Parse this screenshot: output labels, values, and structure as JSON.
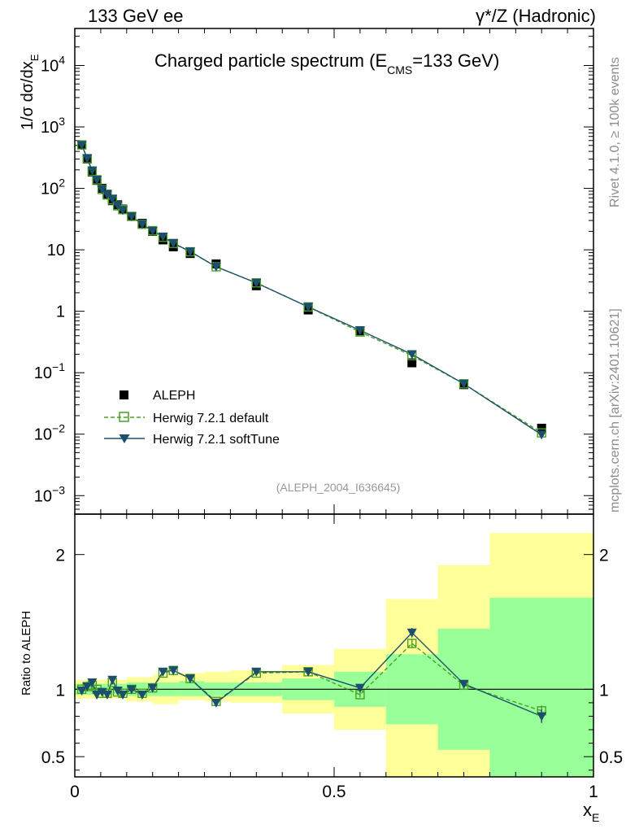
{
  "header": {
    "left": "133 GeV ee",
    "right": "γ*/Z (Hadronic)"
  },
  "side_labels": {
    "rivet": "Rivet 4.1.0, ≥ 100k events",
    "mcplots": "mcplots.cern.ch [arXiv:2401.10621]"
  },
  "colors": {
    "data": "#000000",
    "default": "#4aa023",
    "softtune": "#1b4f6b",
    "band_inner": "#99ff99",
    "band_outer": "#ffff99"
  },
  "chart_data": [
    {
      "id": "main",
      "type": "scatter",
      "yscale": "log",
      "title_main": "Charged particle spectrum (E",
      "title_sub": "CMS",
      "title_rest": "=133 GeV)",
      "ylabel": "1/σ  dσ/dx",
      "ylabel_sub": "E",
      "xlim": [
        0,
        1
      ],
      "ylim": [
        0.0005,
        40000
      ],
      "yticks": [
        {
          "v": 10000,
          "label": "10",
          "exp": "4"
        },
        {
          "v": 1000,
          "label": "10",
          "exp": "3"
        },
        {
          "v": 100,
          "label": "10",
          "exp": "2"
        },
        {
          "v": 10,
          "label": "10",
          "exp": ""
        },
        {
          "v": 1,
          "label": "1",
          "exp": ""
        },
        {
          "v": 0.1,
          "label": "10",
          "exp": "−1"
        },
        {
          "v": 0.01,
          "label": "10",
          "exp": "−2"
        },
        {
          "v": 0.001,
          "label": "10",
          "exp": "−3"
        }
      ],
      "watermark": "(ALEPH_2004_I636645)",
      "legend": [
        {
          "key": "data",
          "label": "ALEPH"
        },
        {
          "key": "default",
          "label": "Herwig 7.2.1 default"
        },
        {
          "key": "softtune",
          "label": "Herwig 7.2.1 softTune"
        }
      ],
      "x": [
        0.0135,
        0.024,
        0.0335,
        0.0425,
        0.0525,
        0.0625,
        0.0725,
        0.0825,
        0.0925,
        0.1095,
        0.13,
        0.15,
        0.17,
        0.19,
        0.2225,
        0.2725,
        0.35,
        0.45,
        0.55,
        0.65,
        0.75,
        0.9
      ],
      "series": [
        {
          "name": "ALEPH",
          "key": "data",
          "values": [
            510,
            300,
            185,
            135,
            100,
            80,
            63,
            54,
            46,
            35,
            27,
            20,
            14.5,
            11.2,
            8.7,
            5.9,
            2.6,
            1.05,
            0.48,
            0.145,
            0.064,
            0.0125
          ]
        },
        {
          "name": "Herwig 7.2.1 default",
          "key": "default",
          "values": [
            510,
            305,
            190,
            138,
            96,
            78,
            65,
            52,
            45,
            35,
            26,
            20.5,
            16,
            12.7,
            9.3,
            5.3,
            2.9,
            1.18,
            0.46,
            0.19,
            0.066,
            0.0105
          ]
        },
        {
          "name": "Herwig 7.2.1 softTune",
          "key": "softtune",
          "values": [
            505,
            308,
            195,
            138,
            96,
            80,
            68,
            53,
            44,
            35,
            26,
            20.3,
            16.4,
            12.8,
            9.4,
            5.3,
            2.9,
            1.18,
            0.49,
            0.2,
            0.066,
            0.0098
          ]
        }
      ]
    },
    {
      "id": "ratio",
      "type": "line",
      "ylabel": "Ratio to ALEPH",
      "xlabel": "x",
      "xlabel_sub": "E",
      "xlim": [
        0,
        1
      ],
      "ylim": [
        0.35,
        2.3
      ],
      "yticks": [
        {
          "v": 2,
          "label": "2"
        },
        {
          "v": 1,
          "label": "1"
        },
        {
          "v": 0.5,
          "label": "0.5"
        }
      ],
      "xticks": [
        {
          "v": 0,
          "label": "0"
        },
        {
          "v": 0.5,
          "label": "0.5"
        },
        {
          "v": 1,
          "label": "1"
        }
      ],
      "bands": [
        {
          "x0": 0.0,
          "x1": 0.1,
          "inner": [
            0.96,
            1.04
          ],
          "outer": [
            0.93,
            1.07
          ]
        },
        {
          "x0": 0.1,
          "x1": 0.15,
          "inner": [
            0.95,
            1.05
          ],
          "outer": [
            0.91,
            1.09
          ]
        },
        {
          "x0": 0.15,
          "x1": 0.2,
          "inner": [
            0.95,
            1.05
          ],
          "outer": [
            0.89,
            1.11
          ]
        },
        {
          "x0": 0.2,
          "x1": 0.25,
          "inner": [
            0.95,
            1.06
          ],
          "outer": [
            0.92,
            1.12
          ]
        },
        {
          "x0": 0.25,
          "x1": 0.3,
          "inner": [
            0.95,
            1.05
          ],
          "outer": [
            0.91,
            1.13
          ]
        },
        {
          "x0": 0.3,
          "x1": 0.4,
          "inner": [
            0.95,
            1.05
          ],
          "outer": [
            0.9,
            1.14
          ]
        },
        {
          "x0": 0.4,
          "x1": 0.5,
          "inner": [
            0.92,
            1.08
          ],
          "outer": [
            0.82,
            1.18
          ]
        },
        {
          "x0": 0.5,
          "x1": 0.6,
          "inner": [
            0.87,
            1.13
          ],
          "outer": [
            0.7,
            1.3
          ]
        },
        {
          "x0": 0.6,
          "x1": 0.7,
          "inner": [
            0.74,
            1.26
          ],
          "outer": [
            0.35,
            1.67
          ]
        },
        {
          "x0": 0.7,
          "x1": 0.8,
          "inner": [
            0.55,
            1.45
          ],
          "outer": [
            0.35,
            1.92
          ]
        },
        {
          "x0": 0.8,
          "x1": 1.0,
          "inner": [
            0.35,
            1.68
          ],
          "outer": [
            0.35,
            2.16
          ]
        }
      ],
      "series": [
        {
          "name": "Herwig 7.2.1 default",
          "key": "default",
          "values": [
            1.0,
            1.02,
            1.03,
            1.0,
            0.97,
            0.97,
            1.05,
            0.98,
            0.97,
            1.0,
            0.97,
            1.01,
            1.12,
            1.14,
            1.08,
            0.91,
            1.12,
            1.13,
            0.96,
            1.34,
            1.03,
            0.84
          ],
          "errors": [
            0.008,
            0.008,
            0.008,
            0.008,
            0.008,
            0.008,
            0.008,
            0.008,
            0.008,
            0.008,
            0.008,
            0.008,
            0.01,
            0.01,
            0.01,
            0.012,
            0.012,
            0.015,
            0.02,
            0.035,
            0.03,
            0.04
          ]
        },
        {
          "name": "Herwig 7.2.1 softTune",
          "key": "softtune",
          "values": [
            0.99,
            1.02,
            1.05,
            0.96,
            0.98,
            0.96,
            1.07,
            0.99,
            0.96,
            1.0,
            0.96,
            1.01,
            1.13,
            1.14,
            1.08,
            0.9,
            1.13,
            1.13,
            1.01,
            1.42,
            1.04,
            0.8
          ],
          "errors": [
            0.008,
            0.008,
            0.008,
            0.008,
            0.008,
            0.008,
            0.008,
            0.008,
            0.008,
            0.008,
            0.008,
            0.008,
            0.01,
            0.01,
            0.01,
            0.012,
            0.012,
            0.015,
            0.02,
            0.035,
            0.03,
            0.05
          ]
        }
      ]
    }
  ]
}
